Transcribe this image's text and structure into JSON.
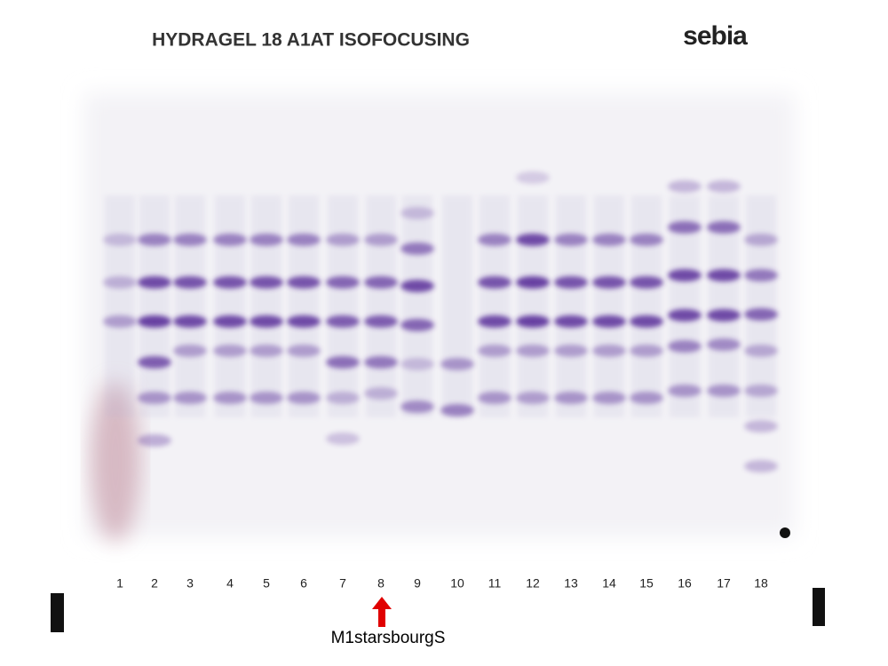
{
  "header": {
    "title": "HYDRAGEL 18 A1AT ISOFOCUSING",
    "brand": "sebia"
  },
  "lanes": [
    "1",
    "2",
    "3",
    "4",
    "5",
    "6",
    "7",
    "8",
    "9",
    "10",
    "11",
    "12",
    "13",
    "14",
    "15",
    "16",
    "17",
    "18"
  ],
  "annotation": "M1starsbourgS"
}
